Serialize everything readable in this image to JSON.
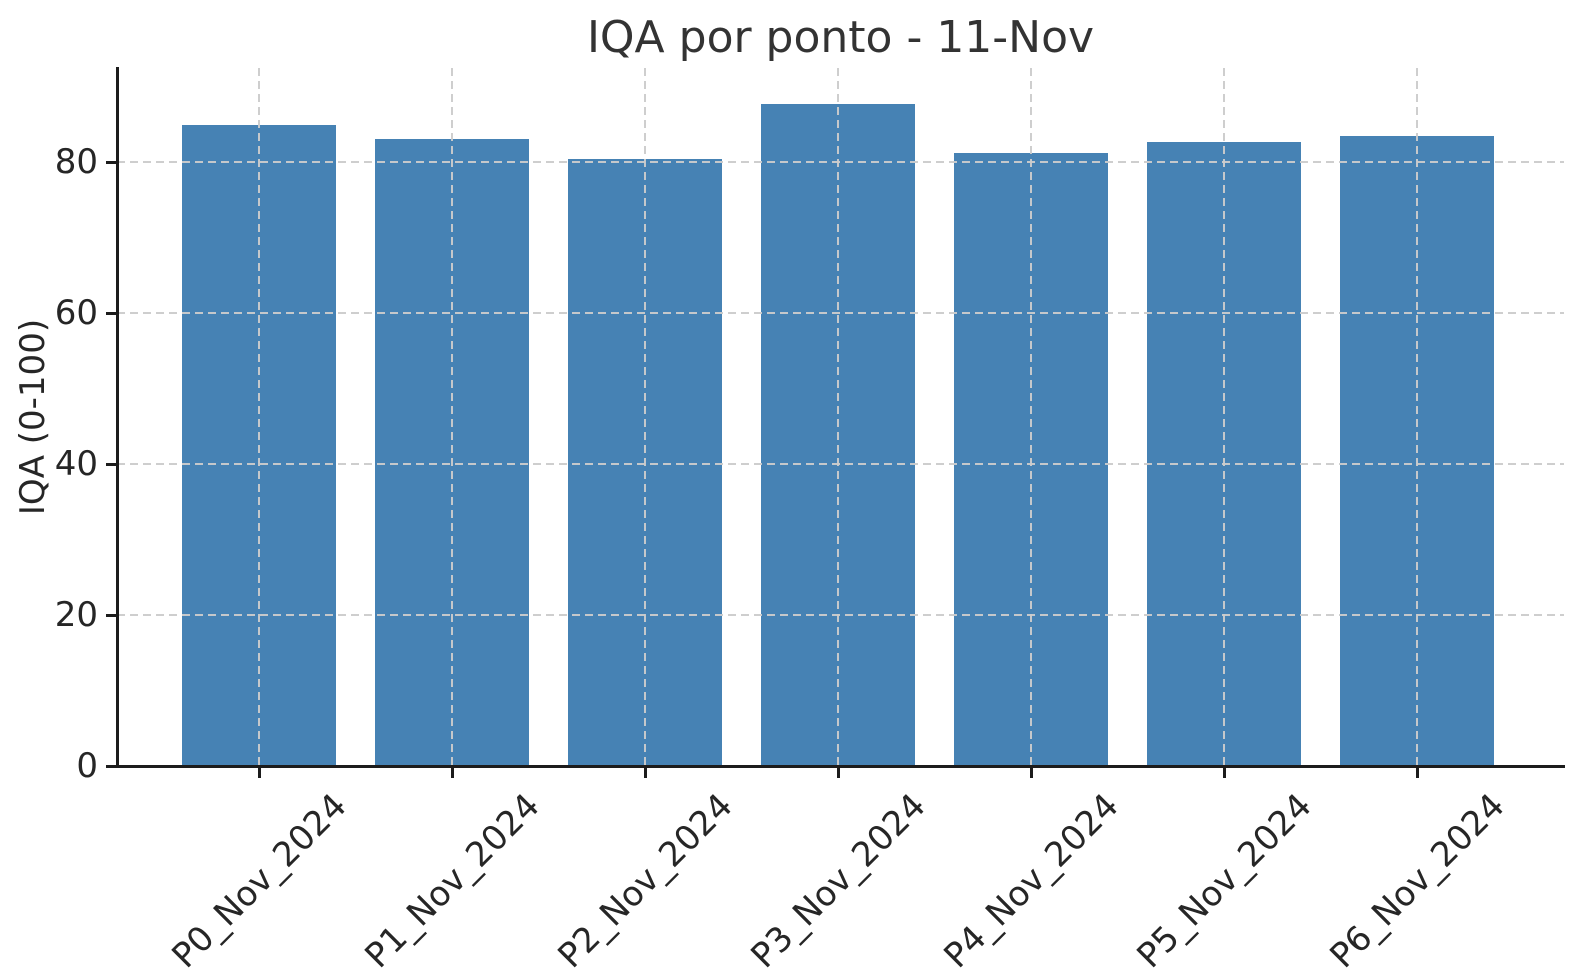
{
  "figure": {
    "background": "#ffffff"
  },
  "chart_data": {
    "type": "bar",
    "title": "IQA por ponto - 11-Nov",
    "xlabel": "",
    "ylabel": "IQA (0-100)",
    "categories": [
      "P0_Nov_2024",
      "P1_Nov_2024",
      "P2_Nov_2024",
      "P3_Nov_2024",
      "P4_Nov_2024",
      "P5_Nov_2024",
      "P6_Nov_2024"
    ],
    "values": [
      84.9,
      83.0,
      80.4,
      87.7,
      81.1,
      82.6,
      83.4
    ],
    "yticks": [
      0,
      20,
      40,
      60,
      80
    ],
    "ylim": [
      0,
      92.4
    ],
    "xtick_rotation_deg": 45,
    "grid": "both",
    "grid_linestyle": "dashed",
    "legend_position": "none",
    "colors": {
      "bar": "#4682b4",
      "grid": "#cccccc",
      "axis": "#1c1c1c",
      "tick_label": "#262626",
      "title": "#333333"
    }
  }
}
